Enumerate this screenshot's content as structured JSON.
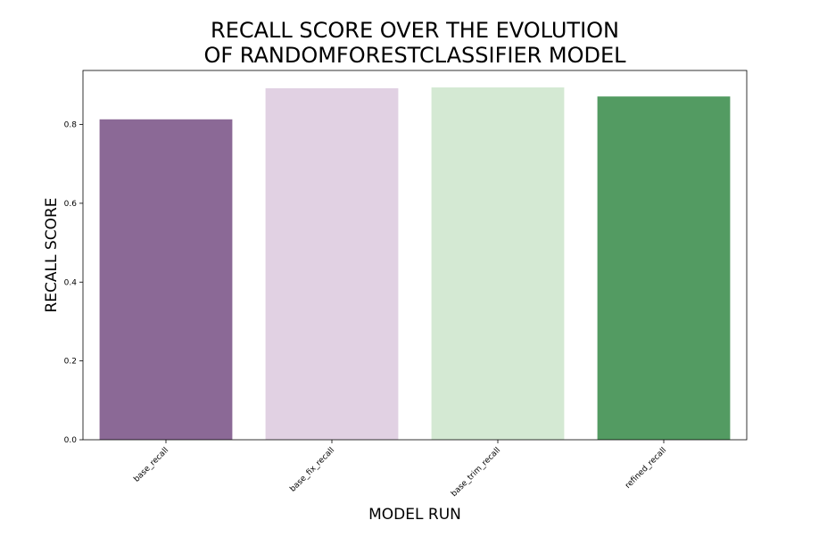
{
  "chart_data": {
    "type": "bar",
    "title_lines": [
      "RECALL SCORE OVER THE EVOLUTION",
      "OF RANDOMFORESTCLASSIFIER MODEL"
    ],
    "xlabel": "MODEL RUN",
    "ylabel": "RECALL SCORE",
    "categories": [
      "base_recall",
      "base_fix_recall",
      "base_trim_recall",
      "refined_recall"
    ],
    "values": [
      0.813,
      0.892,
      0.894,
      0.871
    ],
    "colors": [
      "#8b6996",
      "#e1d1e3",
      "#d4e9d3",
      "#539b62"
    ],
    "ylim": [
      0,
      0.937
    ],
    "yticks": [
      0.0,
      0.2,
      0.4,
      0.6,
      0.8
    ],
    "ytick_labels": [
      "0.0",
      "0.2",
      "0.4",
      "0.6",
      "0.8"
    ],
    "grid": false,
    "legend": "none"
  }
}
